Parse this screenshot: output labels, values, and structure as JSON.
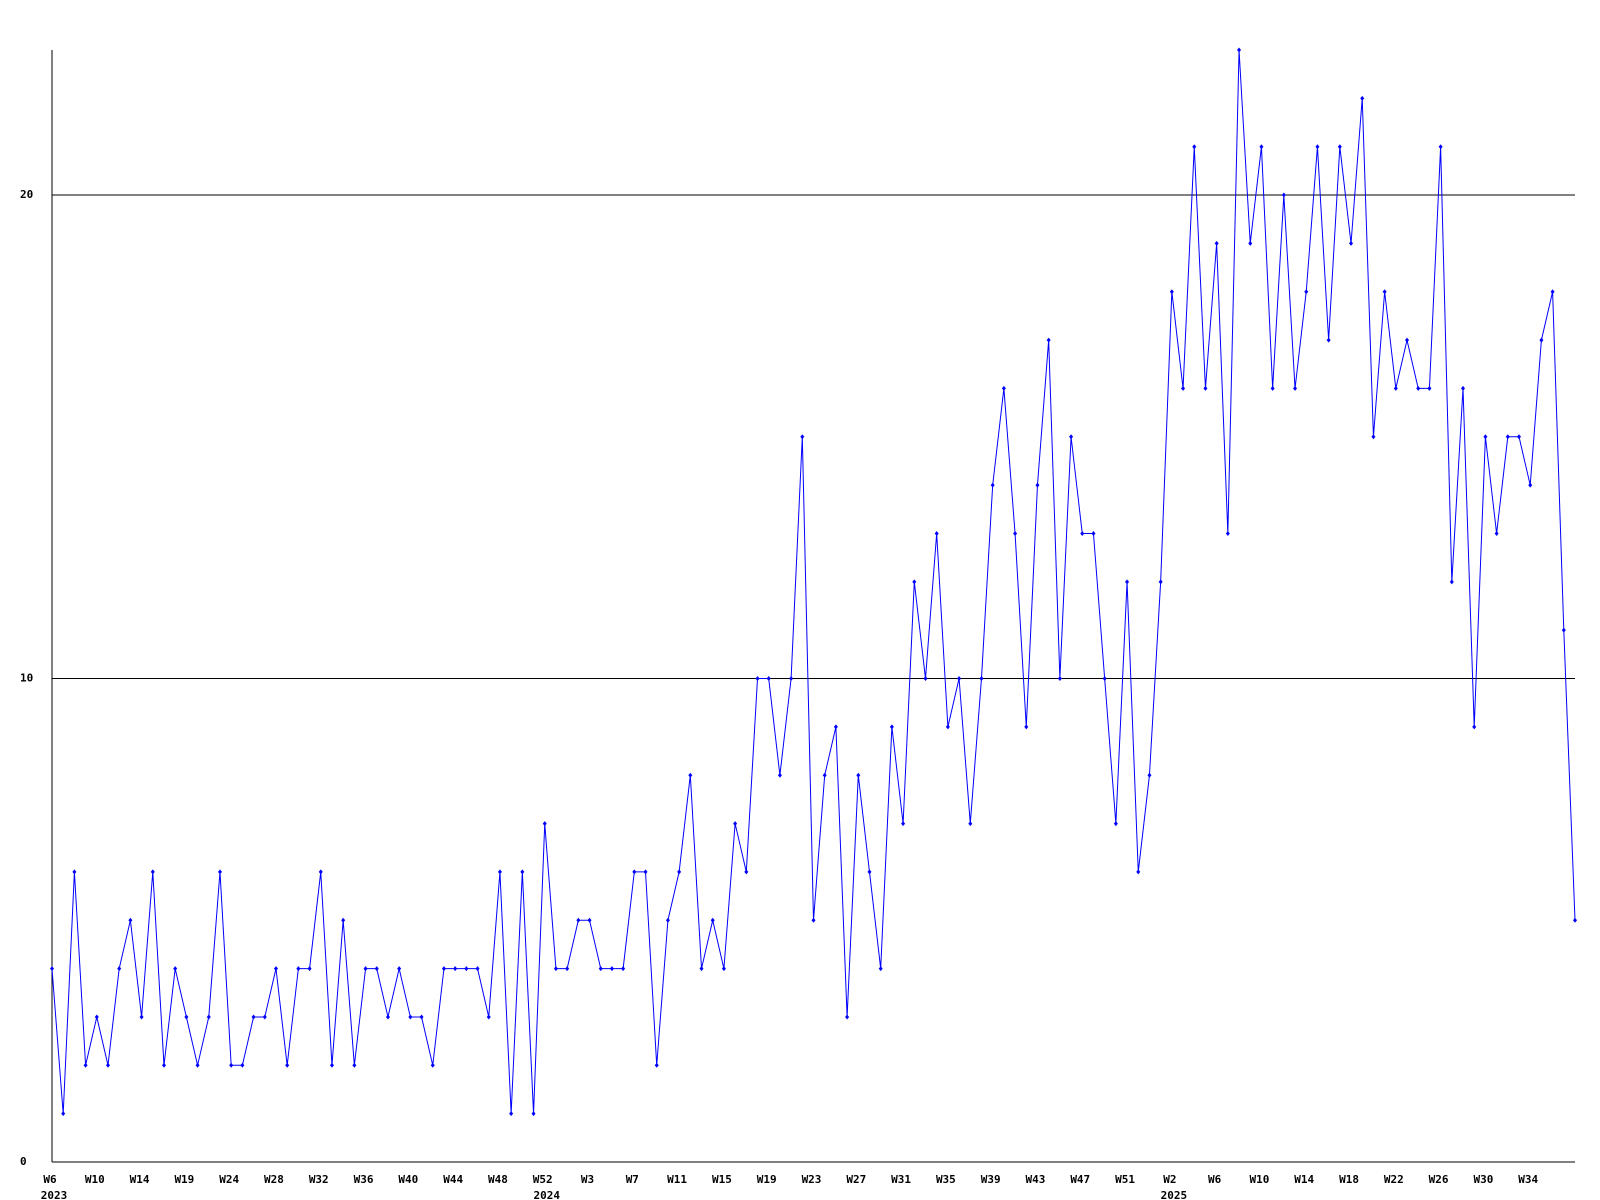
{
  "chart_data": {
    "type": "line",
    "categories": [
      "W6",
      null,
      null,
      null,
      "W10",
      null,
      null,
      null,
      "W14",
      null,
      null,
      null,
      "W19",
      null,
      null,
      null,
      "W24",
      null,
      null,
      null,
      "W28",
      null,
      null,
      null,
      "W32",
      null,
      null,
      null,
      "W36",
      null,
      null,
      null,
      "W40",
      null,
      null,
      null,
      "W44",
      null,
      null,
      null,
      "W48",
      null,
      null,
      null,
      "W52",
      null,
      null,
      null,
      "W3",
      null,
      null,
      null,
      "W7",
      null,
      null,
      null,
      "W11",
      null,
      null,
      null,
      "W15",
      null,
      null,
      null,
      "W19",
      null,
      null,
      null,
      "W23",
      null,
      null,
      null,
      "W27",
      null,
      null,
      null,
      "W31",
      null,
      null,
      null,
      "W35",
      null,
      null,
      null,
      "W39",
      null,
      null,
      null,
      "W43",
      null,
      null,
      null,
      "W47",
      null,
      null,
      null,
      "W51",
      null,
      null,
      null,
      "W2",
      null,
      null,
      null,
      "W6",
      null,
      null,
      null,
      "W10",
      null,
      null,
      null,
      "W14",
      null,
      null,
      null,
      "W18",
      null,
      null,
      null,
      "W22",
      null,
      null,
      null,
      "W26",
      null,
      null,
      null,
      "W30",
      null,
      null,
      null,
      "W34",
      null,
      null,
      null,
      null
    ],
    "x_group_labels": [
      {
        "category": 0,
        "label": "2023"
      },
      {
        "category": 44,
        "label": "2024"
      },
      {
        "category": 100,
        "label": "2025"
      }
    ],
    "values": [
      4,
      1,
      6,
      2,
      3,
      2,
      4,
      5,
      3,
      6,
      2,
      4,
      3,
      2,
      3,
      6,
      2,
      2,
      3,
      3,
      4,
      2,
      4,
      4,
      6,
      2,
      5,
      2,
      4,
      4,
      3,
      4,
      3,
      3,
      2,
      4,
      4,
      4,
      4,
      3,
      6,
      1,
      6,
      1,
      7,
      4,
      4,
      5,
      5,
      4,
      4,
      4,
      6,
      6,
      2,
      5,
      6,
      8,
      4,
      5,
      4,
      7,
      6,
      10,
      10,
      8,
      10,
      15,
      5,
      8,
      9,
      3,
      8,
      6,
      4,
      9,
      7,
      12,
      10,
      13,
      9,
      10,
      7,
      10,
      14,
      16,
      13,
      9,
      14,
      17,
      10,
      15,
      13,
      13,
      10,
      7,
      12,
      6,
      8,
      12,
      18,
      16,
      21,
      16,
      19,
      13,
      23,
      19,
      21,
      16,
      20,
      16,
      18,
      21,
      17,
      21,
      19,
      22,
      15,
      18,
      16,
      17,
      16,
      16,
      21,
      12,
      16,
      9,
      15,
      13,
      15,
      15,
      14,
      17,
      18,
      11,
      5
    ],
    "color": "#0000ff",
    "ylim": [
      0,
      23
    ],
    "yticks": [
      0,
      10,
      20
    ],
    "grid": true
  }
}
